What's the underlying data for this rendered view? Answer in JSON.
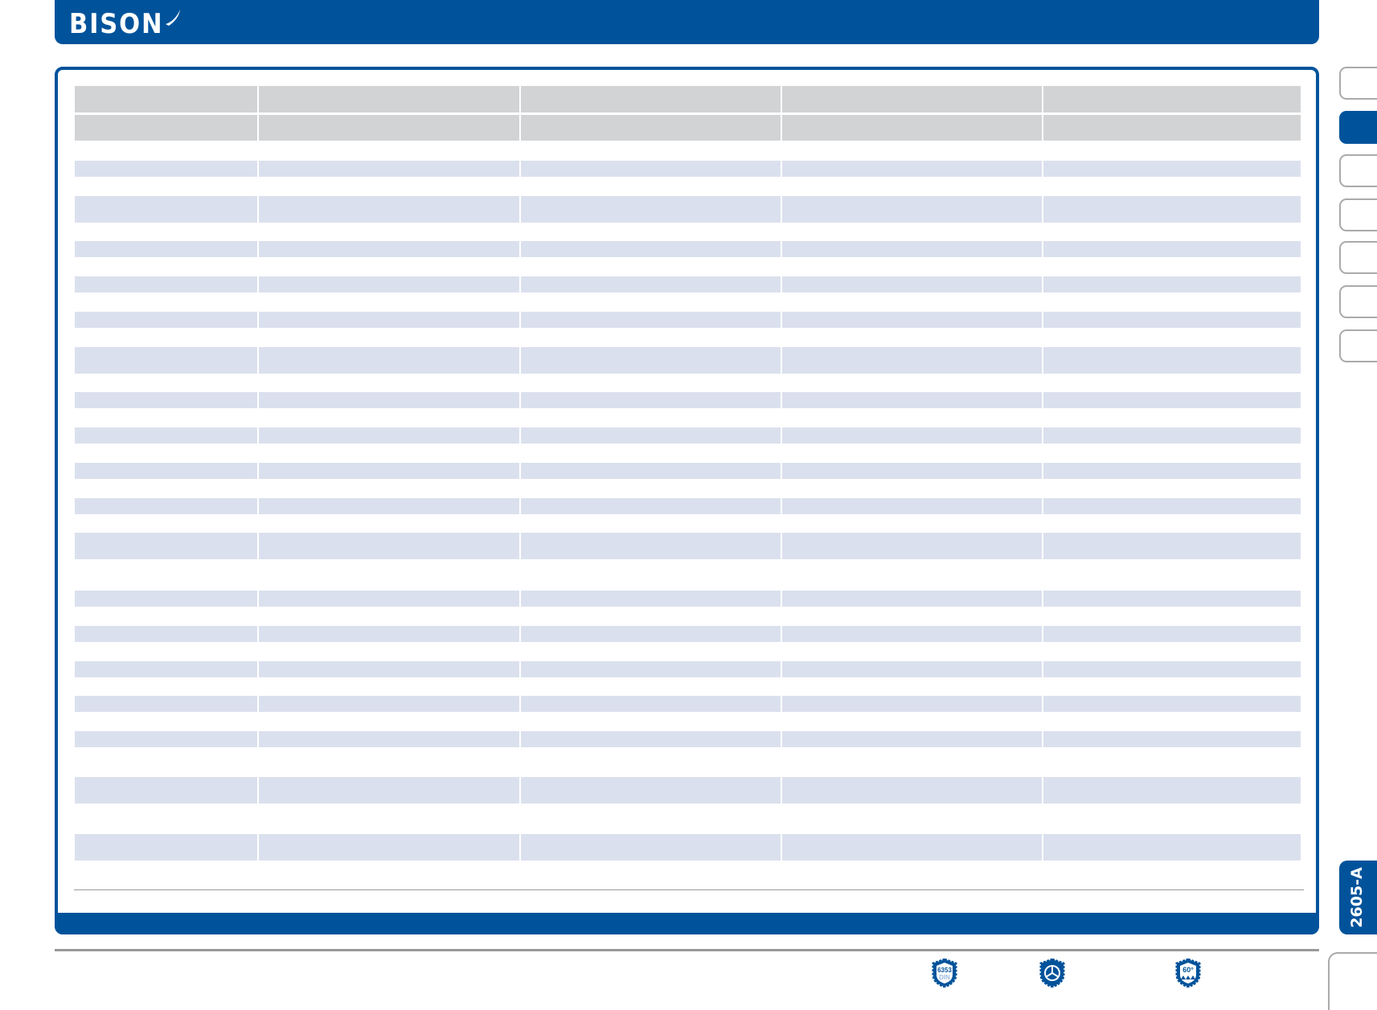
{
  "brand": {
    "logo_text": "BISON",
    "primary_color": "#00539b",
    "header_cell_color": "#d2d3d5",
    "row_color": "#dbe0ee"
  },
  "side_tabs": {
    "count": 7,
    "active_index": 1
  },
  "page_code": "2605-A",
  "badges": [
    {
      "icon": "din-6353-badge-icon",
      "label": "6353 DIN"
    },
    {
      "icon": "chuck-jaw-badge-icon",
      "label": ""
    },
    {
      "icon": "60-degree-badge-icon",
      "label": "60°"
    }
  ]
}
